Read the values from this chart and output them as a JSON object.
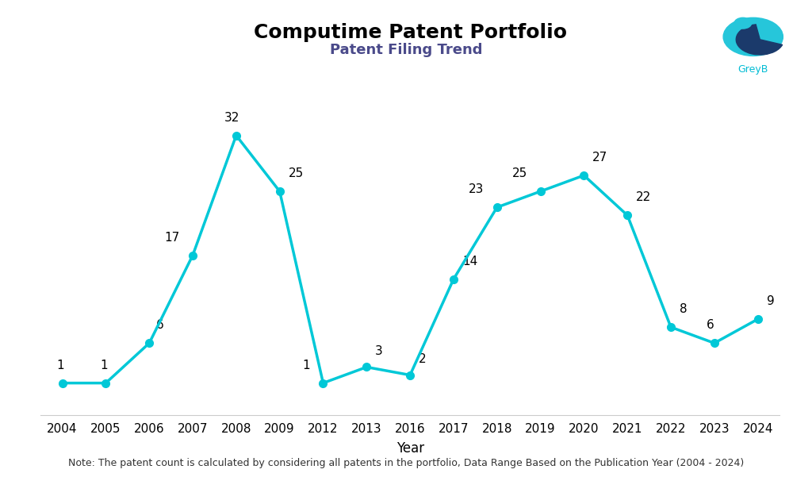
{
  "title": "Computime Patent Portfolio",
  "subtitle": "Patent Filing Trend",
  "xlabel": "Year",
  "footnote": "Note: The patent count is calculated by considering all patents in the portfolio, Data Range Based on the Publication Year (2004 - 2024)",
  "years_labels": [
    "2004",
    "2005",
    "2006",
    "2007",
    "2008",
    "2009",
    "2012",
    "2013",
    "2016",
    "2017",
    "2018",
    "2019",
    "2020",
    "2021",
    "2022",
    "2023",
    "2024"
  ],
  "values": [
    1,
    1,
    6,
    17,
    32,
    25,
    1,
    3,
    2,
    14,
    23,
    25,
    27,
    22,
    8,
    6,
    9
  ],
  "line_color": "#00C8D7",
  "marker_color": "#00C8D7",
  "background_color": "#ffffff",
  "title_fontsize": 18,
  "subtitle_fontsize": 13,
  "footnote_fontsize": 9,
  "xlabel_fontsize": 12,
  "tick_fontsize": 11,
  "annotation_fontsize": 11,
  "line_width": 2.5,
  "marker_size": 7,
  "ylim": [
    -3,
    40
  ],
  "subtitle_color": "#4a4a8a",
  "greyb_color": "#00BCD4"
}
